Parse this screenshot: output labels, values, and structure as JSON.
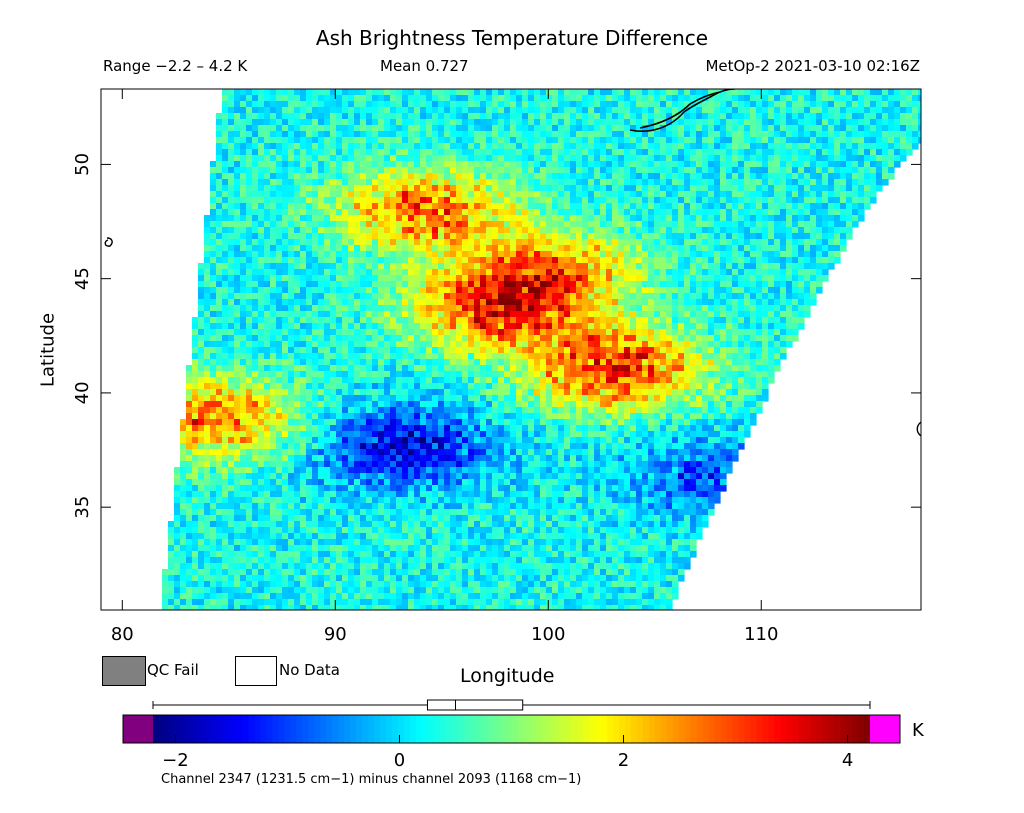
{
  "header": {
    "title": "Ash Brightness Temperature Difference",
    "range": "Range −2.2 – 4.2 K",
    "mean": "Mean 0.727",
    "satellite_time": "MetOp-2 2021-03-10 02:16Z"
  },
  "legend": {
    "qc_fail": "QC Fail",
    "no_data": "No Data",
    "qc_fail_color": "#808080",
    "no_data_color": "#ffffff"
  },
  "colorbar": {
    "unit": "K",
    "caption": "Channel 2347 (1231.5 cm−1) minus channel 2093 (1168 cm−1)",
    "ticks": [
      "−2",
      "0",
      "2",
      "4"
    ],
    "tick_values": [
      -2,
      0,
      2,
      4
    ],
    "range": [
      -2.2,
      4.2
    ],
    "underflow_color": "#800080",
    "overflow_color": "#ff00ff",
    "colormap": [
      "#00007f",
      "#0000ff",
      "#007fff",
      "#00ffff",
      "#7fff7f",
      "#ffff00",
      "#ff7f00",
      "#ff0000",
      "#7f0000"
    ],
    "boxplot": {
      "min": -2.2,
      "q1": 0.25,
      "median": 0.5,
      "q3": 1.1,
      "max": 4.2
    }
  },
  "chart_data": {
    "type": "heatmap",
    "title": "Ash Brightness Temperature Difference",
    "xlabel": "Longitude",
    "ylabel": "Latitude",
    "xlim": [
      79,
      117.5
    ],
    "ylim": [
      30.5,
      53.3
    ],
    "x_ticks": [
      80,
      90,
      100,
      110
    ],
    "y_ticks": [
      35,
      40,
      45,
      50
    ],
    "x_tick_labels": [
      "80",
      "90",
      "100",
      "110"
    ],
    "y_tick_labels": [
      "35",
      "40",
      "45",
      "50"
    ],
    "value_range": [
      -2.2,
      4.2
    ],
    "mean": 0.727,
    "units": "K",
    "swath_corners": {
      "top_left": [
        84.8,
        53.3
      ],
      "bottom_left": [
        81.9,
        30.5
      ],
      "top_right": [
        117.5,
        52.2
      ],
      "bottom_right": [
        105.5,
        30.5
      ]
    },
    "background_value": 0.3,
    "features": [
      {
        "lon": 97.5,
        "lat": 43.8,
        "value": 3.2
      },
      {
        "lon": 103.0,
        "lat": 41.2,
        "value": 3.5
      },
      {
        "lon": 84.2,
        "lat": 39.0,
        "value": 3.0
      },
      {
        "lon": 94.0,
        "lat": 48.2,
        "value": 3.0
      },
      {
        "lon": 100.0,
        "lat": 45.5,
        "value": 2.6
      },
      {
        "lon": 93.0,
        "lat": 37.8,
        "value": -1.8
      },
      {
        "lon": 107.5,
        "lat": 36.5,
        "value": -1.0
      }
    ]
  }
}
